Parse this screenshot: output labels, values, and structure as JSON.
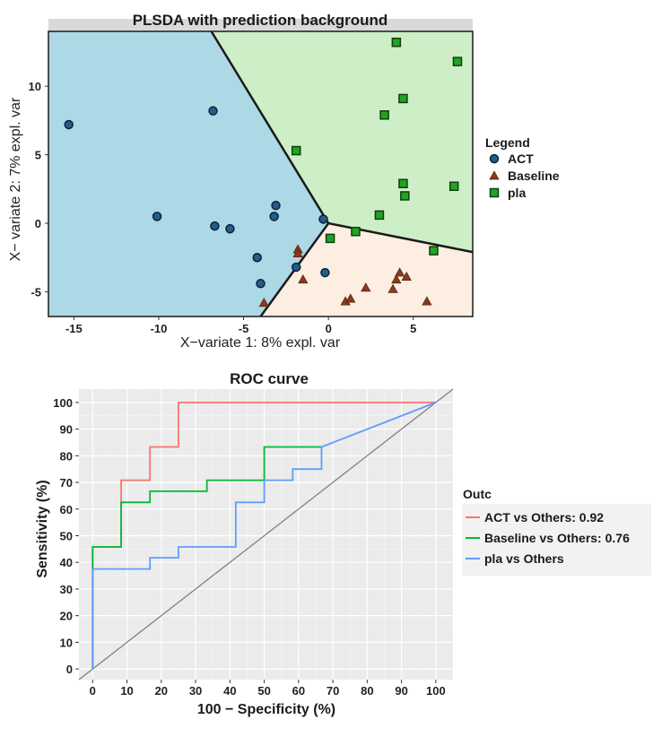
{
  "chart_data": [
    {
      "type": "scatter",
      "title": "PLSDA with prediction background",
      "xlabel": "X−variate 1: 8% expl. var",
      "ylabel": "X− variate 2: 7% expl. var",
      "xlim": [
        -16.5,
        8.5
      ],
      "ylim": [
        -6.8,
        14
      ],
      "x_ticks": [
        -15,
        -10,
        -5,
        0,
        5
      ],
      "x_tick_labels": [
        "-15",
        "-10",
        "-5",
        "0",
        "5"
      ],
      "y_ticks": [
        -5,
        0,
        5,
        10
      ],
      "y_tick_labels": [
        "-5",
        "0",
        "5",
        "10"
      ],
      "legend_title": "Legend",
      "legend_position": "right",
      "regions": [
        {
          "label": "ACT",
          "color": "#add8e6",
          "polygon": [
            [
              -16.5,
              -6.8
            ],
            [
              -16.5,
              14
            ],
            [
              -6.9,
              14
            ],
            [
              0,
              0
            ],
            [
              -4,
              -6.8
            ]
          ]
        },
        {
          "label": "pla",
          "color": "#cdeec6",
          "polygon": [
            [
              -6.9,
              14
            ],
            [
              8.5,
              14
            ],
            [
              8.5,
              -2.1
            ],
            [
              0,
              0
            ]
          ]
        },
        {
          "label": "Baseline",
          "color": "#fdeee2",
          "polygon": [
            [
              -4,
              -6.8
            ],
            [
              0,
              0
            ],
            [
              8.5,
              -2.1
            ],
            [
              8.5,
              -6.8
            ]
          ]
        }
      ],
      "boundaries": [
        [
          [
            -6.9,
            14
          ],
          [
            0,
            0
          ]
        ],
        [
          [
            0,
            0
          ],
          [
            -4,
            -6.8
          ]
        ],
        [
          [
            0,
            0
          ],
          [
            8.5,
            -2.1
          ]
        ]
      ],
      "series": [
        {
          "name": "ACT",
          "marker": "circle",
          "color": "#1f5f8b",
          "x": [
            -15.3,
            -6.8,
            -10.1,
            -6.7,
            -5.8,
            -3.1,
            -3.2,
            -0.3,
            -4.2,
            -4,
            -1.9,
            -0.2
          ],
          "y": [
            7.2,
            8.2,
            0.5,
            -0.2,
            -0.4,
            1.3,
            0.5,
            0.3,
            -2.5,
            -4.4,
            -3.2,
            -3.6
          ]
        },
        {
          "name": "Baseline",
          "marker": "triangle",
          "color": "#8b3a1a",
          "x": [
            -1.8,
            -1.8,
            -1.5,
            -3.8,
            1,
            1.3,
            2.2,
            3.8,
            4,
            4.2,
            4.6,
            5.8
          ],
          "y": [
            -1.9,
            -2.2,
            -4.1,
            -5.8,
            -5.7,
            -5.5,
            -4.7,
            -4.8,
            -4.1,
            -3.6,
            -3.9,
            -5.7
          ]
        },
        {
          "name": "pla",
          "marker": "square",
          "color": "#22a322",
          "x": [
            4,
            7.6,
            4.4,
            3.3,
            -1.9,
            4.4,
            7.4,
            4.5,
            3,
            1.6,
            0.1,
            6.2
          ],
          "y": [
            13.2,
            11.8,
            9.1,
            7.9,
            5.3,
            2.9,
            2.7,
            2,
            0.6,
            -0.6,
            -1.1,
            -2
          ]
        }
      ]
    },
    {
      "type": "line",
      "title": "ROC curve",
      "xlabel": "100 − Specificity (%)",
      "ylabel": "Sensitivity (%)",
      "xlim": [
        -4,
        105
      ],
      "ylim": [
        -4,
        105
      ],
      "x_ticks": [
        0,
        10,
        20,
        30,
        40,
        50,
        60,
        70,
        80,
        90,
        100
      ],
      "x_tick_labels": [
        "0",
        "10",
        "20",
        "30",
        "40",
        "50",
        "60",
        "70",
        "80",
        "90",
        "100"
      ],
      "y_ticks": [
        0,
        10,
        20,
        30,
        40,
        50,
        60,
        70,
        80,
        90,
        100
      ],
      "y_tick_labels": [
        "0",
        "10",
        "20",
        "30",
        "40",
        "50",
        "60",
        "70",
        "80",
        "90",
        "100"
      ],
      "grid": true,
      "legend_title": "Outc",
      "legend_position": "right",
      "reference_line": {
        "x": [
          -4,
          105
        ],
        "y": [
          -4,
          105
        ],
        "color": "#808080"
      },
      "series": [
        {
          "name": "ACT vs Others: 0.92",
          "color": "#f8766d",
          "x": [
            0,
            0,
            0,
            8.3,
            8.3,
            16.7,
            16.7,
            25,
            25,
            100
          ],
          "y": [
            0,
            37.5,
            45.8,
            45.8,
            70.8,
            70.8,
            83.3,
            83.3,
            100,
            100
          ]
        },
        {
          "name": "Baseline vs Others: 0.76",
          "color": "#00ba38",
          "x": [
            0,
            0,
            0,
            8.3,
            8.3,
            16.7,
            16.7,
            33.3,
            33.3,
            50,
            50,
            66.7
          ],
          "y": [
            0,
            37.5,
            45.8,
            45.8,
            62.5,
            62.5,
            66.7,
            66.7,
            70.8,
            70.8,
            83.3,
            83.3
          ]
        },
        {
          "name": "pla vs Others",
          "color": "#619cff",
          "x": [
            0,
            0,
            16.7,
            16.7,
            25,
            25,
            41.7,
            41.7,
            50,
            50,
            58.3,
            58.3,
            66.7,
            66.7,
            100
          ],
          "y": [
            0,
            37.5,
            37.5,
            41.7,
            41.7,
            45.8,
            45.8,
            62.5,
            62.5,
            70.8,
            70.8,
            75,
            75,
            83.3,
            100
          ]
        }
      ]
    }
  ]
}
